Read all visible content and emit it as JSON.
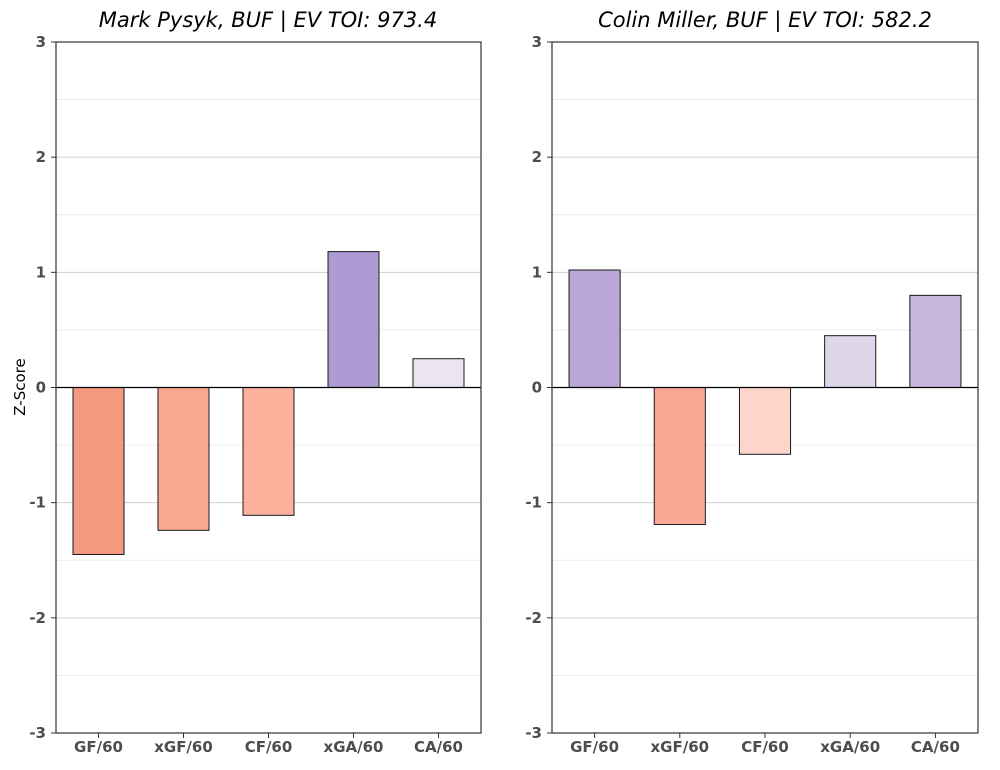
{
  "chart_data": {
    "type": "bar",
    "ylabel": "Z-Score",
    "ylim": [
      -3,
      3
    ],
    "yticks": [
      -3,
      -2,
      -1,
      0,
      1,
      2,
      3
    ],
    "grid": true,
    "panels": [
      {
        "title": "Mark Pysyk, BUF  |  EV TOI: 973.4",
        "categories": [
          "GF/60",
          "xGF/60",
          "CF/60",
          "xGA/60",
          "CA/60"
        ],
        "values": [
          -1.45,
          -1.24,
          -1.11,
          1.18,
          0.25
        ],
        "colors": [
          "#f59a80",
          "#f9a990",
          "#fbb19b",
          "#ae9bd3",
          "#ebe4f3"
        ]
      },
      {
        "title": "Colin Miller, BUF  |  EV TOI: 582.2",
        "categories": [
          "GF/60",
          "xGF/60",
          "CF/60",
          "xGA/60",
          "CA/60"
        ],
        "values": [
          1.02,
          -1.19,
          -0.58,
          0.45,
          0.8
        ],
        "colors": [
          "#baa6d7",
          "#faa896",
          "#fdd5cb",
          "#dfd6ec",
          "#c7b6de"
        ]
      }
    ]
  }
}
